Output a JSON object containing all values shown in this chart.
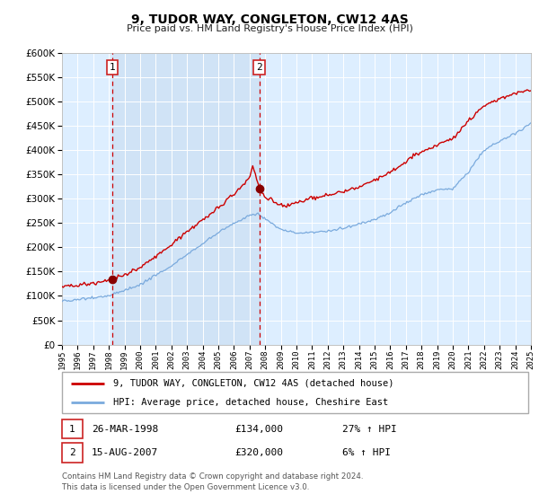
{
  "title": "9, TUDOR WAY, CONGLETON, CW12 4AS",
  "subtitle": "Price paid vs. HM Land Registry's House Price Index (HPI)",
  "legend_line1": "9, TUDOR WAY, CONGLETON, CW12 4AS (detached house)",
  "legend_line2": "HPI: Average price, detached house, Cheshire East",
  "footer1": "Contains HM Land Registry data © Crown copyright and database right 2024.",
  "footer2": "This data is licensed under the Open Government Licence v3.0.",
  "sale1_label": "1",
  "sale1_date": "26-MAR-1998",
  "sale1_price": "£134,000",
  "sale1_hpi": "27% ↑ HPI",
  "sale2_label": "2",
  "sale2_date": "15-AUG-2007",
  "sale2_price": "£320,000",
  "sale2_hpi": "6% ↑ HPI",
  "red_color": "#cc0000",
  "blue_color": "#7aaadd",
  "bg_shade": "#ddeeff",
  "fig_bg": "#ffffff",
  "ylim": [
    0,
    600000
  ],
  "yticks": [
    0,
    50000,
    100000,
    150000,
    200000,
    250000,
    300000,
    350000,
    400000,
    450000,
    500000,
    550000,
    600000
  ],
  "sale1_x": 1998.21,
  "sale1_y": 134000,
  "sale2_x": 2007.62,
  "sale2_y": 320000,
  "vline1_x": 1998.21,
  "vline2_x": 2007.62,
  "xmin": 1995.0,
  "xmax": 2025.0
}
